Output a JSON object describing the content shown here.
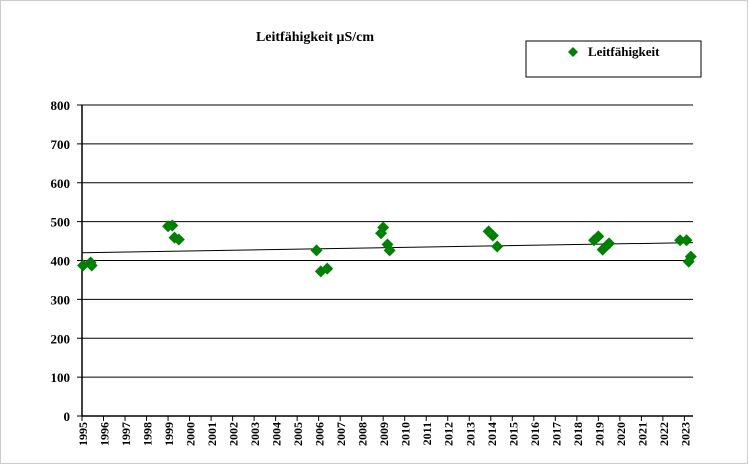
{
  "chart_data": {
    "type": "scatter",
    "title": "Leitfähigkeit µS/cm",
    "series": [
      {
        "name": "Leitfähigkeit",
        "color": "#008000",
        "x": [
          1995.05,
          1995.4,
          1995.45,
          1999.0,
          1999.2,
          1999.3,
          1999.5,
          2005.9,
          2006.1,
          2006.4,
          2008.9,
          2009.0,
          2009.2,
          2009.3,
          2013.9,
          2014.1,
          2014.3,
          2018.8,
          2019.0,
          2019.2,
          2019.4,
          2019.5,
          2022.8,
          2023.1,
          2023.2,
          2023.3
        ],
        "values": [
          387,
          395,
          387,
          488,
          490,
          459,
          454,
          426,
          372,
          379,
          470,
          485,
          441,
          426,
          475,
          464,
          436,
          452,
          462,
          428,
          439,
          444,
          452,
          452,
          397,
          410
        ]
      }
    ],
    "trend": {
      "x": [
        1995,
        2023.4
      ],
      "values": [
        420,
        446
      ]
    },
    "xlim": [
      1995,
      2023.4
    ],
    "xticks": [
      1995,
      1996,
      1997,
      1998,
      1999,
      2000,
      2001,
      2002,
      2003,
      2004,
      2005,
      2006,
      2007,
      2008,
      2009,
      2010,
      2011,
      2012,
      2013,
      2014,
      2015,
      2016,
      2017,
      2018,
      2019,
      2020,
      2021,
      2022,
      2023
    ],
    "ylim": [
      0,
      800
    ],
    "yticks": [
      0,
      100,
      200,
      300,
      400,
      500,
      600,
      700,
      800
    ],
    "grid": true,
    "legend": "top-right"
  }
}
